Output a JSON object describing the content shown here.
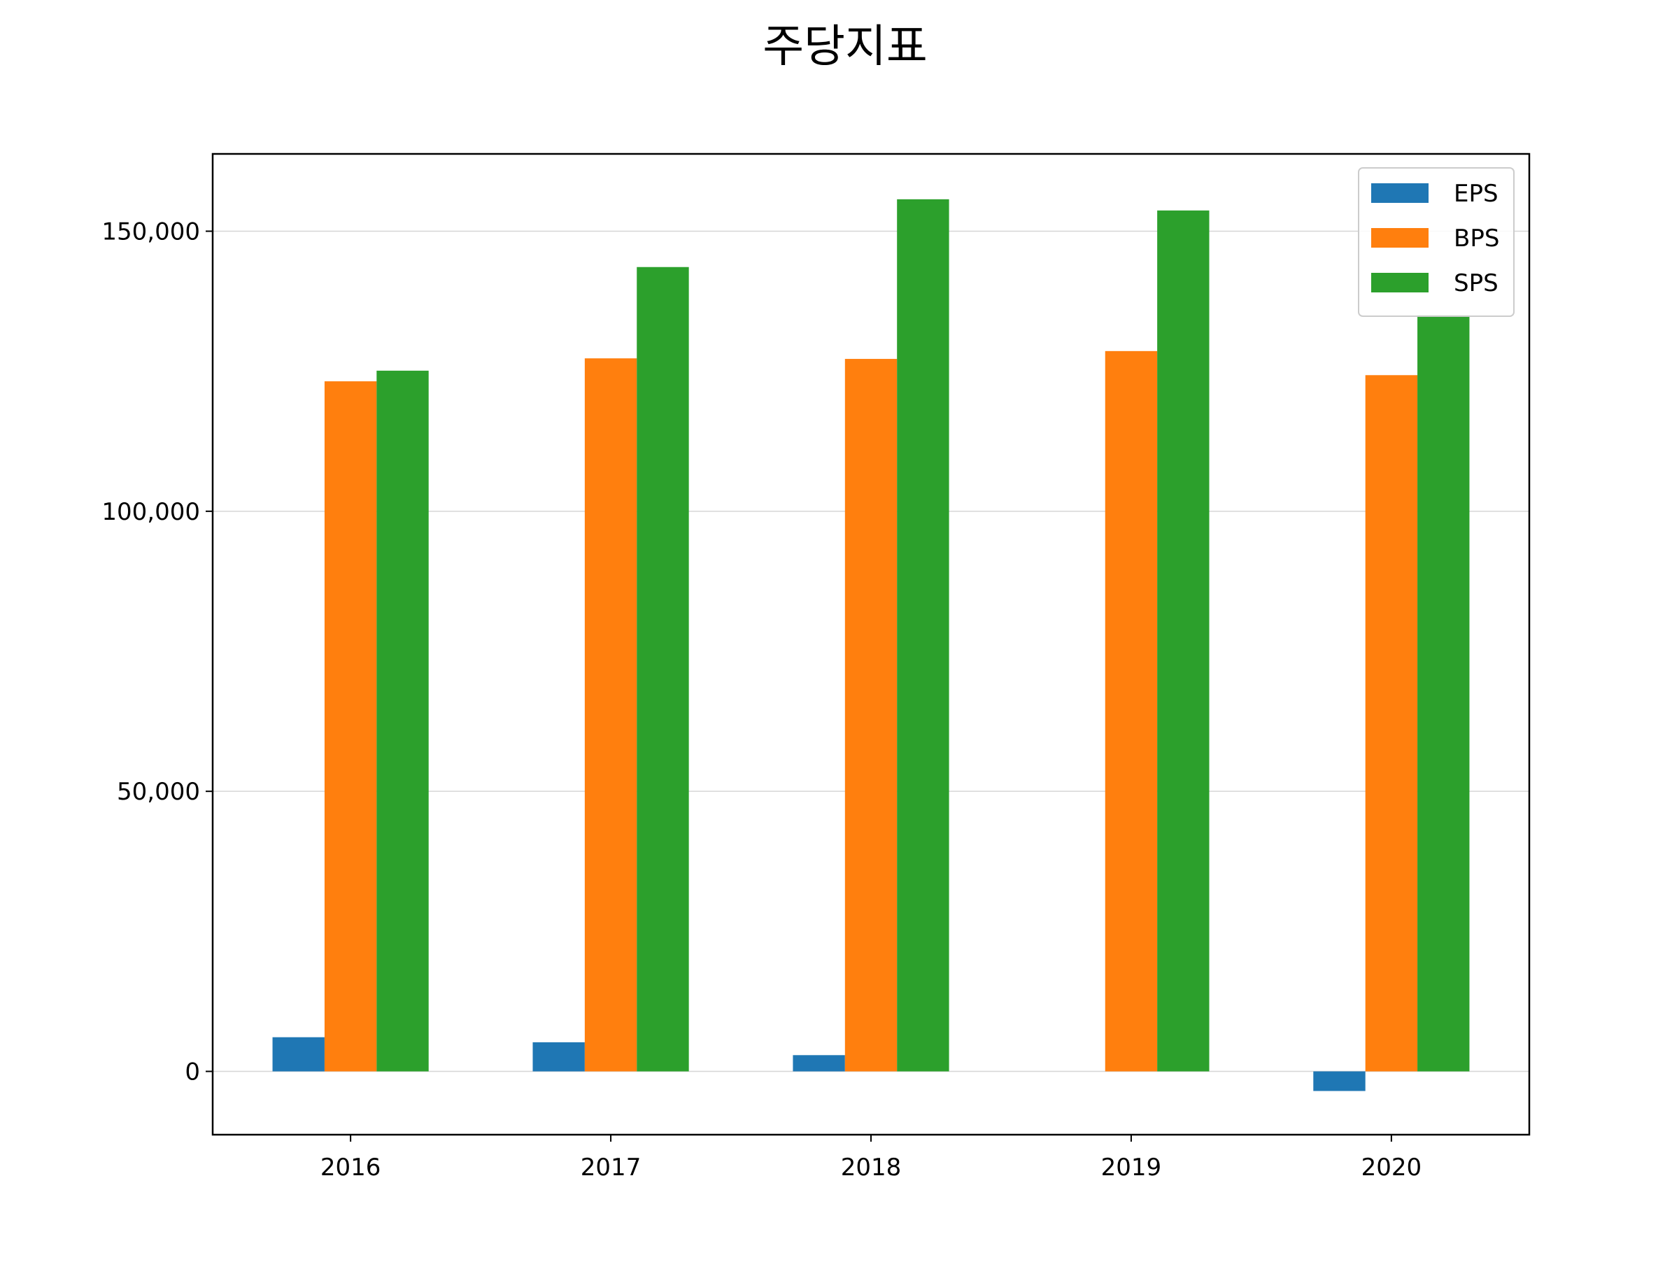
{
  "chart_data": {
    "type": "bar",
    "title": "주당지표",
    "xlabel": "",
    "ylabel": "",
    "categories": [
      "2016",
      "2017",
      "2018",
      "2019",
      "2020"
    ],
    "series": [
      {
        "name": "EPS",
        "values": [
          6100,
          5200,
          2900,
          0,
          -3500
        ],
        "color": "#1f77b4"
      },
      {
        "name": "BPS",
        "values": [
          123200,
          127300,
          127200,
          128600,
          124300
        ],
        "color": "#ff7f0e"
      },
      {
        "name": "SPS",
        "values": [
          125100,
          143600,
          155700,
          153700,
          135000
        ],
        "color": "#2ca02c"
      }
    ],
    "ylim": [
      -11300,
      163800
    ],
    "yticks": [
      0,
      50000,
      100000,
      150000
    ],
    "ytick_labels": [
      "0",
      "50,000",
      "100,000",
      "150,000"
    ],
    "grid": "horizontal",
    "legend_position": "upper right"
  }
}
